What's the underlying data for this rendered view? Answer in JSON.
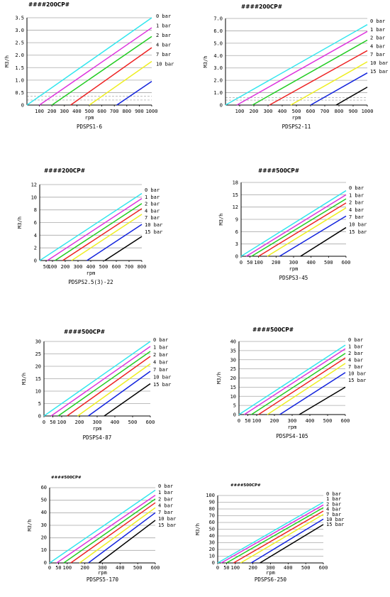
{
  "charts": [
    {
      "note": "####200CP#",
      "title": "PDSPS1-6",
      "xlabel": "rpm",
      "ylabel": "M3/h",
      "xticks": [
        "100",
        "200",
        "300",
        "400",
        "500",
        "600",
        "700",
        "800",
        "900",
        "1000"
      ],
      "yticks": [
        "0",
        "0.5",
        "1.0",
        "1.5",
        "2.0",
        "2.5",
        "3.0",
        "3.5"
      ],
      "legend": [
        "0 bar",
        "1 bar",
        "2 bar",
        "4 bar",
        "7 bar",
        "10 bar"
      ]
    },
    {
      "note": "####200CP#",
      "title": "PDSPS2-11",
      "xlabel": "rpm",
      "ylabel": "M3/h",
      "xticks": [
        "100",
        "200",
        "300",
        "400",
        "500",
        "600",
        "700",
        "800",
        "900",
        "1000"
      ],
      "yticks": [
        "0",
        "1.0",
        "2.0",
        "3.0",
        "4.0",
        "5.0",
        "6.0",
        "7.0"
      ],
      "legend": [
        "0 bar",
        "1 bar",
        "2 bar",
        "4 bar",
        "7 bar",
        "10 bar",
        "15 bar"
      ]
    },
    {
      "note": "####200CP#",
      "title": "PDSPS2.5(3)-22",
      "xlabel": "rpm",
      "ylabel": "M3/h",
      "xticks": [
        "50",
        "100",
        "200",
        "300",
        "400",
        "500",
        "600",
        "700",
        "800"
      ],
      "yticks": [
        "0",
        "2",
        "4",
        "6",
        "8",
        "10",
        "12"
      ],
      "legend": [
        "0 bar",
        "1 bar",
        "2 bar",
        "4 bar",
        "7 bar",
        "10 bar",
        "15 bar"
      ]
    },
    {
      "note": "####500CP#",
      "title": "PDSPS3-45",
      "xlabel": "rpm",
      "ylabel": "M3/h",
      "xticks": [
        "0",
        "50",
        "100",
        "200",
        "300",
        "400",
        "500",
        "600"
      ],
      "yticks": [
        "0",
        "3",
        "6",
        "9",
        "12",
        "15",
        "18"
      ],
      "legend": [
        "0 bar",
        "1 bar",
        "2 bar",
        "4 bar",
        "7 bar",
        "10 bar",
        "15 bar"
      ]
    },
    {
      "note": "####500CP#",
      "title": "PDSPS4-87",
      "xlabel": "rpm",
      "ylabel": "M3/h",
      "xticks": [
        "0",
        "50",
        "100",
        "200",
        "300",
        "400",
        "500",
        "600"
      ],
      "yticks": [
        "0",
        "5",
        "10",
        "15",
        "20",
        "25",
        "30"
      ],
      "legend": [
        "0 bar",
        "1 bar",
        "2 bar",
        "4 bar",
        "7 bar",
        "10 bar",
        "15 bar"
      ]
    },
    {
      "note": "####500CP#",
      "title": "PDSPS4-105",
      "xlabel": "rpm",
      "ylabel": "M3/h",
      "xticks": [
        "0",
        "50",
        "100",
        "200",
        "300",
        "400",
        "500",
        "600"
      ],
      "yticks": [
        "0",
        "5",
        "10",
        "15",
        "20",
        "25",
        "30",
        "35",
        "40"
      ],
      "legend": [
        "0 bar",
        "1 bar",
        "2 bar",
        "4 bar",
        "7 bar",
        "10 bar",
        "15 bar"
      ]
    },
    {
      "note": "####500CP#",
      "title": "PDSPS5-170",
      "xlabel": "rpm",
      "ylabel": "M3/h",
      "xticks": [
        "0",
        "50",
        "100",
        "200",
        "300",
        "400",
        "500",
        "600"
      ],
      "yticks": [
        "0",
        "10",
        "20",
        "30",
        "40",
        "50",
        "60"
      ],
      "legend": [
        "0 bar",
        "1 bar",
        "2 bar",
        "4 bar",
        "7 bar",
        "10 bar",
        "15 bar"
      ]
    },
    {
      "note": "####500CP#",
      "title": "PDSPS6-250",
      "xlabel": "rpm",
      "ylabel": "M3/h",
      "xticks": [
        "0",
        "50",
        "100",
        "200",
        "300",
        "400",
        "500",
        "600"
      ],
      "yticks": [
        "0",
        "10",
        "20",
        "30",
        "40",
        "50",
        "60",
        "70",
        "80",
        "90",
        "100"
      ],
      "legend": [
        "0 bar",
        "1 bar",
        "2 bar",
        "4 bar",
        "7 bar",
        "10 bar",
        "15 bar"
      ]
    }
  ],
  "chart_data": [
    {
      "type": "line",
      "title": "PDSPS1-6",
      "xlabel": "rpm",
      "ylabel": "M3/h",
      "xlim": [
        0,
        1000
      ],
      "ylim": [
        0,
        3.5
      ],
      "grid": true,
      "legend_position": "right",
      "series": [
        {
          "name": "0 bar",
          "color": "#33e6ee",
          "x": [
            0,
            1000
          ],
          "y": [
            0,
            3.5
          ]
        },
        {
          "name": "1 bar",
          "color": "#dd33dd",
          "x": [
            100,
            1000
          ],
          "y": [
            0,
            3.1
          ]
        },
        {
          "name": "2 bar",
          "color": "#22cc22",
          "x": [
            200,
            1000
          ],
          "y": [
            0,
            2.75
          ]
        },
        {
          "name": "4 bar",
          "color": "#ee2222",
          "x": [
            350,
            1000
          ],
          "y": [
            0,
            2.3
          ]
        },
        {
          "name": "7 bar",
          "color": "#eeee22",
          "x": [
            500,
            1000
          ],
          "y": [
            0,
            1.75
          ]
        },
        {
          "name": "10 bar",
          "color": "#1122dd",
          "x": [
            720,
            1000
          ],
          "y": [
            0,
            0.95
          ]
        }
      ],
      "reference_lines": [
        0.2,
        0.35
      ]
    },
    {
      "type": "line",
      "title": "PDSPS2-11",
      "xlabel": "rpm",
      "ylabel": "M3/h",
      "xlim": [
        0,
        1000
      ],
      "ylim": [
        0,
        7.0
      ],
      "grid": true,
      "legend_position": "right",
      "series": [
        {
          "name": "0 bar",
          "color": "#33e6ee",
          "x": [
            0,
            1000
          ],
          "y": [
            0,
            6.5
          ]
        },
        {
          "name": "1 bar",
          "color": "#dd33dd",
          "x": [
            80,
            1000
          ],
          "y": [
            0,
            5.95
          ]
        },
        {
          "name": "2 bar",
          "color": "#22cc22",
          "x": [
            190,
            1000
          ],
          "y": [
            0,
            5.25
          ]
        },
        {
          "name": "4 bar",
          "color": "#ee2222",
          "x": [
            310,
            1000
          ],
          "y": [
            0,
            4.4
          ]
        },
        {
          "name": "7 bar",
          "color": "#eeee22",
          "x": [
            460,
            1000
          ],
          "y": [
            0,
            3.5
          ]
        },
        {
          "name": "10 bar",
          "color": "#1122dd",
          "x": [
            600,
            1000
          ],
          "y": [
            0,
            2.6
          ]
        },
        {
          "name": "15 bar",
          "color": "#000000",
          "x": [
            780,
            1000
          ],
          "y": [
            0,
            1.45
          ]
        }
      ],
      "reference_lines": [
        0.4,
        0.6
      ]
    },
    {
      "type": "line",
      "title": "PDSPS2.5(3)-22",
      "xlabel": "rpm",
      "ylabel": "M3/h",
      "xlim": [
        0,
        800
      ],
      "ylim": [
        0,
        12
      ],
      "grid": true,
      "legend_position": "right",
      "series": [
        {
          "name": "0 bar",
          "color": "#33e6ee",
          "x": [
            0,
            800
          ],
          "y": [
            0,
            10.6
          ]
        },
        {
          "name": "1 bar",
          "color": "#dd33dd",
          "x": [
            60,
            800
          ],
          "y": [
            0,
            9.8
          ]
        },
        {
          "name": "2 bar",
          "color": "#22cc22",
          "x": [
            120,
            800
          ],
          "y": [
            0,
            9.0
          ]
        },
        {
          "name": "4 bar",
          "color": "#ee2222",
          "x": [
            180,
            800
          ],
          "y": [
            0,
            8.2
          ]
        },
        {
          "name": "7 bar",
          "color": "#eeee22",
          "x": [
            250,
            800
          ],
          "y": [
            0,
            7.3
          ]
        },
        {
          "name": "10 bar",
          "color": "#1122dd",
          "x": [
            370,
            800
          ],
          "y": [
            0,
            5.7
          ]
        },
        {
          "name": "15 bar",
          "color": "#000000",
          "x": [
            510,
            800
          ],
          "y": [
            0,
            3.8
          ]
        }
      ]
    },
    {
      "type": "line",
      "title": "PDSPS3-45",
      "xlabel": "rpm",
      "ylabel": "M3/h",
      "xlim": [
        0,
        600
      ],
      "ylim": [
        0,
        18
      ],
      "grid": true,
      "legend_position": "right",
      "series": [
        {
          "name": "0 bar",
          "color": "#33e6ee",
          "x": [
            0,
            600
          ],
          "y": [
            0,
            16.0
          ]
        },
        {
          "name": "1 bar",
          "color": "#dd33dd",
          "x": [
            30,
            600
          ],
          "y": [
            0,
            15.0
          ]
        },
        {
          "name": "2 bar",
          "color": "#22cc22",
          "x": [
            60,
            600
          ],
          "y": [
            0,
            14.0
          ]
        },
        {
          "name": "4 bar",
          "color": "#ee2222",
          "x": [
            100,
            600
          ],
          "y": [
            0,
            13.0
          ]
        },
        {
          "name": "7 bar",
          "color": "#eeee22",
          "x": [
            150,
            600
          ],
          "y": [
            0,
            11.8
          ]
        },
        {
          "name": "10 bar",
          "color": "#1122dd",
          "x": [
            220,
            600
          ],
          "y": [
            0,
            9.8
          ]
        },
        {
          "name": "15 bar",
          "color": "#000000",
          "x": [
            340,
            600
          ],
          "y": [
            0,
            7.0
          ]
        }
      ]
    },
    {
      "type": "line",
      "title": "PDSPS4-87",
      "xlabel": "rpm",
      "ylabel": "M3/h",
      "xlim": [
        0,
        600
      ],
      "ylim": [
        0,
        30
      ],
      "grid": true,
      "legend_position": "right",
      "series": [
        {
          "name": "0 bar",
          "color": "#33e6ee",
          "x": [
            0,
            600
          ],
          "y": [
            0,
            30
          ]
        },
        {
          "name": "1 bar",
          "color": "#dd33dd",
          "x": [
            40,
            600
          ],
          "y": [
            0,
            28
          ]
        },
        {
          "name": "2 bar",
          "color": "#22cc22",
          "x": [
            80,
            600
          ],
          "y": [
            0,
            26
          ]
        },
        {
          "name": "4 bar",
          "color": "#ee2222",
          "x": [
            130,
            600
          ],
          "y": [
            0,
            24
          ]
        },
        {
          "name": "7 bar",
          "color": "#eeee22",
          "x": [
            190,
            600
          ],
          "y": [
            0,
            21
          ]
        },
        {
          "name": "10 bar",
          "color": "#1122dd",
          "x": [
            250,
            600
          ],
          "y": [
            0,
            18
          ]
        },
        {
          "name": "15 bar",
          "color": "#000000",
          "x": [
            340,
            600
          ],
          "y": [
            0,
            13
          ]
        }
      ]
    },
    {
      "type": "line",
      "title": "PDSPS4-105",
      "xlabel": "rpm",
      "ylabel": "M3/h",
      "xlim": [
        0,
        600
      ],
      "ylim": [
        0,
        40
      ],
      "grid": true,
      "legend_position": "right",
      "series": [
        {
          "name": "0 bar",
          "color": "#33e6ee",
          "x": [
            0,
            600
          ],
          "y": [
            0,
            38
          ]
        },
        {
          "name": "1 bar",
          "color": "#dd33dd",
          "x": [
            30,
            600
          ],
          "y": [
            0,
            36
          ]
        },
        {
          "name": "2 bar",
          "color": "#22cc22",
          "x": [
            70,
            600
          ],
          "y": [
            0,
            33.5
          ]
        },
        {
          "name": "4 bar",
          "color": "#ee2222",
          "x": [
            110,
            600
          ],
          "y": [
            0,
            31
          ]
        },
        {
          "name": "7 bar",
          "color": "#eeee22",
          "x": [
            160,
            600
          ],
          "y": [
            0,
            28
          ]
        },
        {
          "name": "10 bar",
          "color": "#1122dd",
          "x": [
            230,
            600
          ],
          "y": [
            0,
            23
          ]
        },
        {
          "name": "15 bar",
          "color": "#000000",
          "x": [
            340,
            600
          ],
          "y": [
            0,
            15
          ]
        }
      ]
    },
    {
      "type": "line",
      "title": "PDSPS5-170",
      "xlabel": "rpm",
      "ylabel": "M3/h",
      "xlim": [
        0,
        600
      ],
      "ylim": [
        0,
        60
      ],
      "grid": true,
      "legend_position": "right",
      "series": [
        {
          "name": "0 bar",
          "color": "#33e6ee",
          "x": [
            0,
            600
          ],
          "y": [
            0,
            58
          ]
        },
        {
          "name": "1 bar",
          "color": "#dd33dd",
          "x": [
            40,
            600
          ],
          "y": [
            0,
            54
          ]
        },
        {
          "name": "2 bar",
          "color": "#22cc22",
          "x": [
            80,
            600
          ],
          "y": [
            0,
            51
          ]
        },
        {
          "name": "4 bar",
          "color": "#ee2222",
          "x": [
            120,
            600
          ],
          "y": [
            0,
            48
          ]
        },
        {
          "name": "7 bar",
          "color": "#eeee22",
          "x": [
            170,
            600
          ],
          "y": [
            0,
            44
          ]
        },
        {
          "name": "10 bar",
          "color": "#1122dd",
          "x": [
            220,
            600
          ],
          "y": [
            0,
            40
          ]
        },
        {
          "name": "15 bar",
          "color": "#000000",
          "x": [
            280,
            600
          ],
          "y": [
            0,
            34
          ]
        }
      ]
    },
    {
      "type": "line",
      "title": "PDSPS6-250",
      "xlabel": "rpm",
      "ylabel": "M3/h",
      "xlim": [
        0,
        600
      ],
      "ylim": [
        0,
        100
      ],
      "grid": true,
      "legend_position": "right",
      "series": [
        {
          "name": "0 bar",
          "color": "#33e6ee",
          "x": [
            0,
            600
          ],
          "y": [
            0,
            90
          ]
        },
        {
          "name": "1 bar",
          "color": "#dd33dd",
          "x": [
            20,
            600
          ],
          "y": [
            0,
            86
          ]
        },
        {
          "name": "2 bar",
          "color": "#22cc22",
          "x": [
            50,
            600
          ],
          "y": [
            0,
            82
          ]
        },
        {
          "name": "4 bar",
          "color": "#ee2222",
          "x": [
            90,
            600
          ],
          "y": [
            0,
            77
          ]
        },
        {
          "name": "7 bar",
          "color": "#eeee22",
          "x": [
            130,
            600
          ],
          "y": [
            0,
            72
          ]
        },
        {
          "name": "10 bar",
          "color": "#1122dd",
          "x": [
            190,
            600
          ],
          "y": [
            0,
            65
          ]
        },
        {
          "name": "15 bar",
          "color": "#000000",
          "x": [
            240,
            600
          ],
          "y": [
            0,
            57
          ]
        }
      ]
    }
  ]
}
